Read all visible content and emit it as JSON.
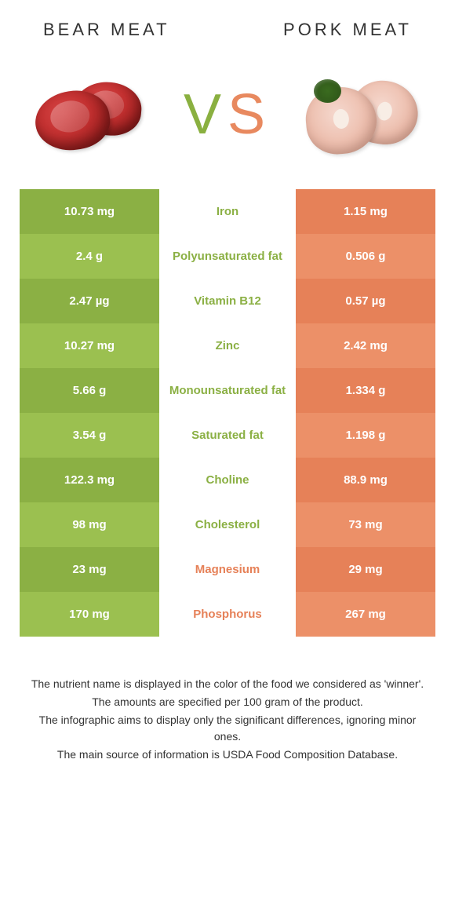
{
  "header": {
    "left_title": "Bear meat",
    "right_title": "Pork meat"
  },
  "vs": {
    "v": "V",
    "s": "S"
  },
  "colors": {
    "green_dark": "#8bb044",
    "green_light": "#9bc050",
    "orange_dark": "#e68158",
    "orange_light": "#ec9068",
    "text_green": "#8bb044",
    "text_orange": "#e68158"
  },
  "rows": [
    {
      "left": "10.73 mg",
      "mid": "Iron",
      "right": "1.15 mg",
      "winner": "left"
    },
    {
      "left": "2.4 g",
      "mid": "Polyunsaturated fat",
      "right": "0.506 g",
      "winner": "left"
    },
    {
      "left": "2.47 µg",
      "mid": "Vitamin B12",
      "right": "0.57 µg",
      "winner": "left"
    },
    {
      "left": "10.27 mg",
      "mid": "Zinc",
      "right": "2.42 mg",
      "winner": "left"
    },
    {
      "left": "5.66 g",
      "mid": "Monounsaturated fat",
      "right": "1.334 g",
      "winner": "left"
    },
    {
      "left": "3.54 g",
      "mid": "Saturated fat",
      "right": "1.198 g",
      "winner": "left"
    },
    {
      "left": "122.3 mg",
      "mid": "Choline",
      "right": "88.9 mg",
      "winner": "left"
    },
    {
      "left": "98 mg",
      "mid": "Cholesterol",
      "right": "73 mg",
      "winner": "left"
    },
    {
      "left": "23 mg",
      "mid": "Magnesium",
      "right": "29 mg",
      "winner": "right"
    },
    {
      "left": "170 mg",
      "mid": "Phosphorus",
      "right": "267 mg",
      "winner": "right"
    }
  ],
  "footer": {
    "line1": "The nutrient name is displayed in the color of the food we considered as 'winner'.",
    "line2": "The amounts are specified per 100 gram of the product.",
    "line3": "The infographic aims to display only the significant differences, ignoring minor ones.",
    "line4": "The main source of information is USDA Food Composition Database."
  }
}
